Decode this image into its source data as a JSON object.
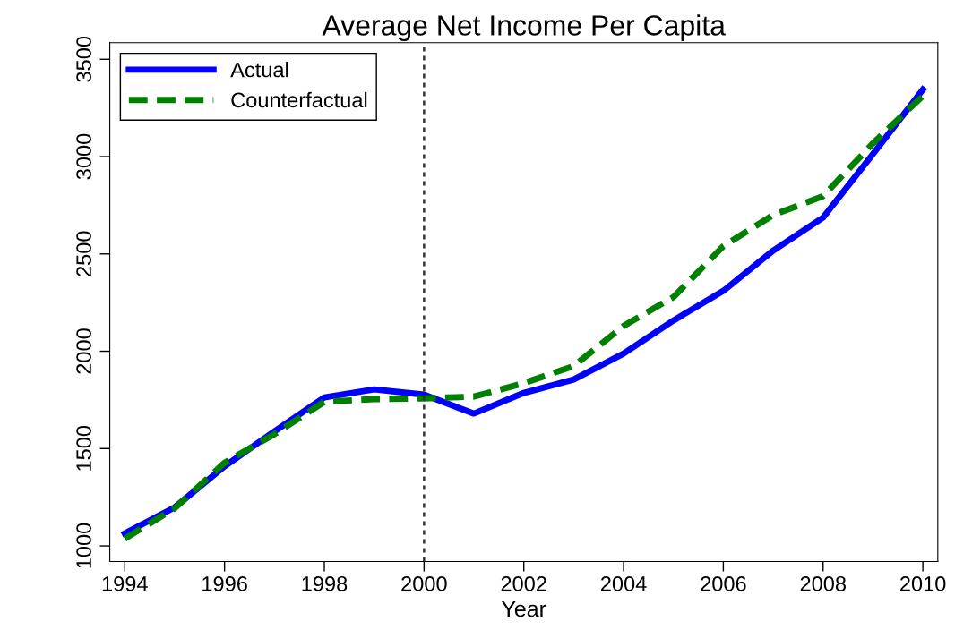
{
  "chart_data": {
    "type": "line",
    "title": "Average Net Income Per Capita",
    "xlabel": "Year",
    "x": [
      1994,
      1995,
      1996,
      1997,
      1998,
      1999,
      2000,
      2001,
      2002,
      2003,
      2004,
      2005,
      2006,
      2007,
      2008,
      2009,
      2010
    ],
    "series": [
      {
        "name": "Actual",
        "color": "#0000ff",
        "line_style": "solid",
        "values": [
          1064,
          1198,
          1409,
          1588,
          1763,
          1804,
          1777,
          1680,
          1786,
          1855,
          1988,
          2158,
          2310,
          2517,
          2687,
          3013,
          3344
        ]
      },
      {
        "name": "Counterfactual",
        "color": "#008000",
        "line_style": "dashed",
        "values": [
          1037,
          1193,
          1427,
          1574,
          1740,
          1754,
          1758,
          1767,
          1836,
          1924,
          2130,
          2278,
          2540,
          2700,
          2797,
          3068,
          3312
        ]
      }
    ],
    "xlim": [
      1993.7,
      2010.3
    ],
    "xticks": [
      1994,
      1996,
      1998,
      2000,
      2002,
      2004,
      2006,
      2008,
      2010
    ],
    "ylim": [
      920,
      3585
    ],
    "yticks": [
      1000,
      1500,
      2000,
      2500,
      3000,
      3500
    ],
    "ref_lines": [
      {
        "axis": "x",
        "value": 2000,
        "color": "#333333",
        "line_style": "dotted"
      }
    ],
    "legend": "top left",
    "grid": false
  }
}
